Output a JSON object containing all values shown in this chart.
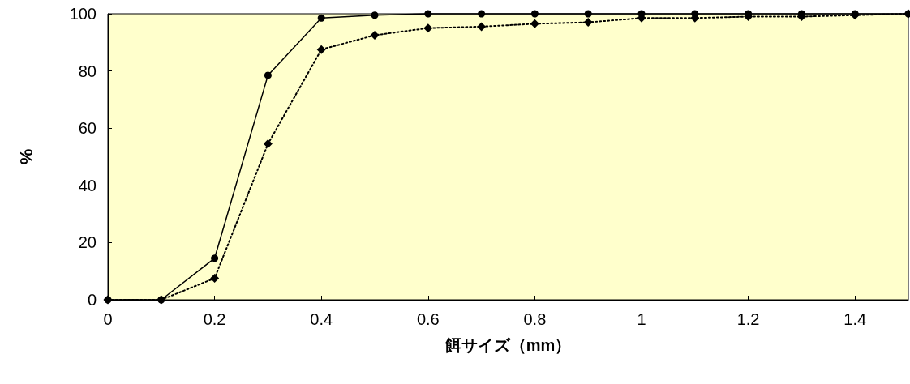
{
  "chart_data": {
    "type": "line",
    "xlabel": "餌サイズ（mm）",
    "ylabel": "%",
    "x": [
      0,
      0.1,
      0.2,
      0.3,
      0.4,
      0.5,
      0.6,
      0.7,
      0.8,
      0.9,
      1.0,
      1.1,
      1.2,
      1.3,
      1.4,
      1.5
    ],
    "series": [
      {
        "color": "#000000",
        "marker": "circle",
        "line_style": "solid",
        "values": [
          0,
          0,
          14.5,
          78.5,
          98.5,
          99.5,
          100,
          100,
          100,
          100,
          100,
          100,
          100,
          100,
          100,
          100
        ]
      },
      {
        "color": "#000000",
        "marker": "diamond",
        "line_style": "dotted",
        "values": [
          0,
          0,
          7.5,
          54.5,
          87.5,
          92.5,
          95,
          95.5,
          96.5,
          97,
          98.5,
          98.5,
          99,
          99,
          99.5,
          100
        ]
      }
    ],
    "xlim": [
      0,
      1.5
    ],
    "xticks": [
      0,
      0.2,
      0.4,
      0.6,
      0.8,
      1,
      1.2,
      1.4
    ],
    "ylim": [
      0,
      100
    ],
    "yticks": [
      0,
      20,
      40,
      60,
      80,
      100
    ]
  }
}
